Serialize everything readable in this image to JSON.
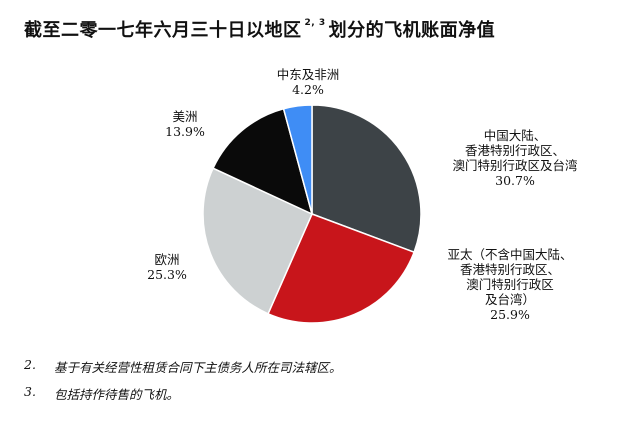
{
  "title": {
    "main": "截至二零一七年六月三十日以地区",
    "superscript": "2, 3",
    "suffix": "划分的飞机账面净值"
  },
  "chart_data": {
    "type": "pie",
    "slices": [
      {
        "label_lines": [
          "中国大陆、",
          "香港特别行政区、",
          "澳门特别行政区及台湾"
        ],
        "value": 30.7,
        "value_text": "30.7%",
        "color": "#3d4347"
      },
      {
        "label_lines": [
          "亚太（不含中国大陆、",
          "香港特别行政区、",
          "澳门特别行政区",
          "及台湾）"
        ],
        "value": 25.9,
        "value_text": "25.9%",
        "color": "#c8151b"
      },
      {
        "label_lines": [
          "欧洲"
        ],
        "value": 25.3,
        "value_text": "25.3%",
        "color": "#cdd1d2"
      },
      {
        "label_lines": [
          "美洲"
        ],
        "value": 13.9,
        "value_text": "13.9%",
        "color": "#0a0a0a"
      },
      {
        "label_lines": [
          "中东及非洲"
        ],
        "value": 4.2,
        "value_text": "4.2%",
        "color": "#3f8df5"
      }
    ]
  },
  "footnotes": [
    {
      "num": "2.",
      "text": "基于有关经营性租赁合同下主债务人所在司法辖区。"
    },
    {
      "num": "3.",
      "text": "包括持作待售的飞机。"
    }
  ]
}
